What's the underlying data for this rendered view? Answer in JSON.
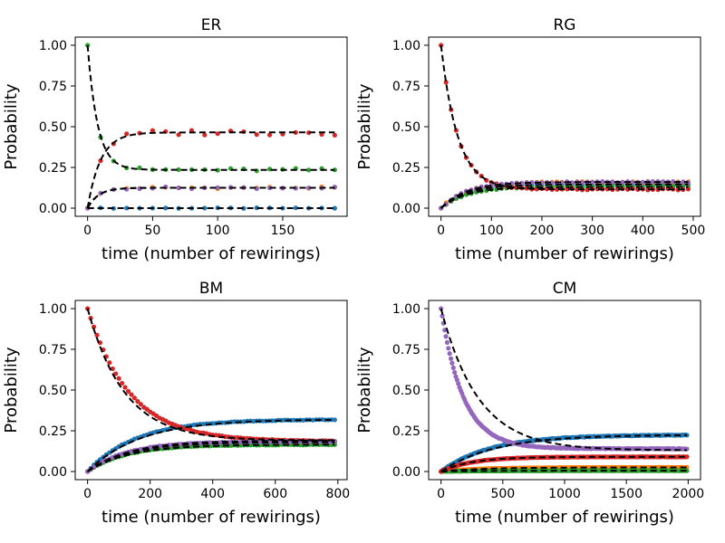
{
  "chart_data": [
    {
      "type": "scatter",
      "title": "ER",
      "xlabel": "time (number of rewirings)",
      "ylabel": "Probability",
      "xlim": [
        -9.5,
        199.5
      ],
      "ylim": [
        -0.05,
        1.05
      ],
      "xticks": [
        0,
        50,
        100,
        150
      ],
      "yticks": [
        0.0,
        0.25,
        0.5,
        0.75,
        1.0
      ],
      "xtick_labels": [
        "0",
        "50",
        "100",
        "150"
      ],
      "ytick_labels": [
        "0.00",
        "0.25",
        "0.50",
        "0.75",
        "1.00"
      ],
      "t_max": 190,
      "n_points": 20,
      "series": [
        {
          "name": "blue",
          "color": "#1f77b4",
          "start": 0.0,
          "equilibrium": 0.0,
          "rate": 0.15,
          "noise": 0.002
        },
        {
          "name": "orange",
          "color": "#ff7f0e",
          "start": 0.0,
          "equilibrium": 0.125,
          "rate": 0.12,
          "noise": 0.006
        },
        {
          "name": "green",
          "color": "#2ca02c",
          "start": 1.0,
          "equilibrium": 0.235,
          "rate": 0.13,
          "noise": 0.01
        },
        {
          "name": "red",
          "color": "#d62728",
          "start": 0.0,
          "equilibrium": 0.465,
          "rate": 0.1,
          "noise": 0.018
        },
        {
          "name": "purple",
          "color": "#9467bd",
          "start": 0.0,
          "equilibrium": 0.125,
          "rate": 0.12,
          "noise": 0.006
        }
      ]
    },
    {
      "type": "scatter",
      "title": "RG",
      "xlabel": "time (number of rewirings)",
      "ylabel": "Probability",
      "xlim": [
        -24.5,
        514.5
      ],
      "ylim": [
        -0.05,
        1.05
      ],
      "xticks": [
        0,
        100,
        200,
        300,
        400,
        500
      ],
      "yticks": [
        0.0,
        0.25,
        0.5,
        0.75,
        1.0
      ],
      "xtick_labels": [
        "0",
        "100",
        "200",
        "300",
        "400",
        "500"
      ],
      "ytick_labels": [
        "0.00",
        "0.25",
        "0.50",
        "0.75",
        "1.00"
      ],
      "t_max": 490,
      "n_points": 50,
      "series": [
        {
          "name": "blue",
          "color": "#1f77b4",
          "start": 0.0,
          "equilibrium": 0.145,
          "rate": 0.02,
          "noise": 0.004
        },
        {
          "name": "orange",
          "color": "#ff7f0e",
          "start": 0.0,
          "equilibrium": 0.16,
          "rate": 0.02,
          "noise": 0.004
        },
        {
          "name": "green",
          "color": "#2ca02c",
          "start": 0.0,
          "equilibrium": 0.13,
          "rate": 0.02,
          "noise": 0.004
        },
        {
          "name": "red",
          "color": "#d62728",
          "start": 1.0,
          "equilibrium": 0.115,
          "rate": 0.03,
          "noise": 0.004
        },
        {
          "name": "purple",
          "color": "#9467bd",
          "start": 0.0,
          "equilibrium": 0.16,
          "rate": 0.02,
          "noise": 0.004
        }
      ]
    },
    {
      "type": "scatter",
      "title": "BM",
      "xlabel": "time (number of rewirings)",
      "ylabel": "Probability",
      "xlim": [
        -39.5,
        829.5
      ],
      "ylim": [
        -0.05,
        1.05
      ],
      "xticks": [
        0,
        200,
        400,
        600,
        800
      ],
      "yticks": [
        0.0,
        0.25,
        0.5,
        0.75,
        1.0
      ],
      "xtick_labels": [
        "0",
        "200",
        "400",
        "600",
        "800"
      ],
      "ytick_labels": [
        "0.00",
        "0.25",
        "0.50",
        "0.75",
        "1.00"
      ],
      "t_max": 790,
      "n_points": 80,
      "series": [
        {
          "name": "blue",
          "color": "#1f77b4",
          "start": 0.0,
          "equilibrium": 0.32,
          "rate": 0.0065,
          "noise": 0.002
        },
        {
          "name": "orange",
          "color": "#ff7f0e",
          "start": 0.0,
          "equilibrium": 0.18,
          "rate": 0.008,
          "noise": 0.002
        },
        {
          "name": "green",
          "color": "#2ca02c",
          "start": 0.0,
          "equilibrium": 0.165,
          "rate": 0.008,
          "noise": 0.002
        },
        {
          "name": "red",
          "color": "#d62728",
          "start": 1.0,
          "equilibrium": 0.185,
          "rate": 0.0075,
          "noise": 0.002
        },
        {
          "name": "purple",
          "color": "#9467bd",
          "start": 0.0,
          "equilibrium": 0.185,
          "rate": 0.008,
          "noise": 0.002
        }
      ],
      "fits": [
        {
          "start": 0.0,
          "equilibrium": 0.32,
          "rate": 0.006
        },
        {
          "start": 0.0,
          "equilibrium": 0.18,
          "rate": 0.0075
        },
        {
          "start": 0.0,
          "equilibrium": 0.165,
          "rate": 0.0075
        },
        {
          "start": 1.0,
          "equilibrium": 0.19,
          "rate": 0.0085
        },
        {
          "start": 0.0,
          "equilibrium": 0.19,
          "rate": 0.0075
        }
      ]
    },
    {
      "type": "scatter",
      "title": "CM",
      "xlabel": "time (number of rewirings)",
      "ylabel": "Probability",
      "xlim": [
        -100,
        2100
      ],
      "ylim": [
        -0.05,
        1.05
      ],
      "xticks": [
        0,
        500,
        1000,
        1500,
        2000
      ],
      "yticks": [
        0.0,
        0.25,
        0.5,
        0.75,
        1.0
      ],
      "xtick_labels": [
        "0",
        "500",
        "1000",
        "1500",
        "2000"
      ],
      "ytick_labels": [
        "0.00",
        "0.25",
        "0.50",
        "0.75",
        "1.00"
      ],
      "t_max": 1990,
      "n_points": 200,
      "series": [
        {
          "name": "blue",
          "color": "#1f77b4",
          "start": 0.0,
          "equilibrium": 0.225,
          "rate": 0.0025,
          "noise": 0.002
        },
        {
          "name": "orange",
          "color": "#ff7f0e",
          "start": 0.0,
          "equilibrium": 0.025,
          "rate": 0.003,
          "noise": 0.001
        },
        {
          "name": "green",
          "color": "#2ca02c",
          "start": 0.0,
          "equilibrium": 0.005,
          "rate": 0.003,
          "noise": 0.0005
        },
        {
          "name": "red",
          "color": "#d62728",
          "start": 0.0,
          "equilibrium": 0.09,
          "rate": 0.004,
          "noise": 0.001
        },
        {
          "name": "purple",
          "color": "#9467bd",
          "start": 1.0,
          "equilibrium": 0.14,
          "rate": 0.0055,
          "noise": 0.002
        }
      ],
      "fits": [
        {
          "start": 0.0,
          "equilibrium": 0.225,
          "rate": 0.0023
        },
        {
          "start": 0.0,
          "equilibrium": 0.025,
          "rate": 0.003
        },
        {
          "start": 0.0,
          "equilibrium": 0.005,
          "rate": 0.003
        },
        {
          "start": 0.0,
          "equilibrium": 0.09,
          "rate": 0.004
        },
        {
          "start": 1.0,
          "equilibrium": 0.13,
          "rate": 0.0033
        }
      ]
    }
  ]
}
